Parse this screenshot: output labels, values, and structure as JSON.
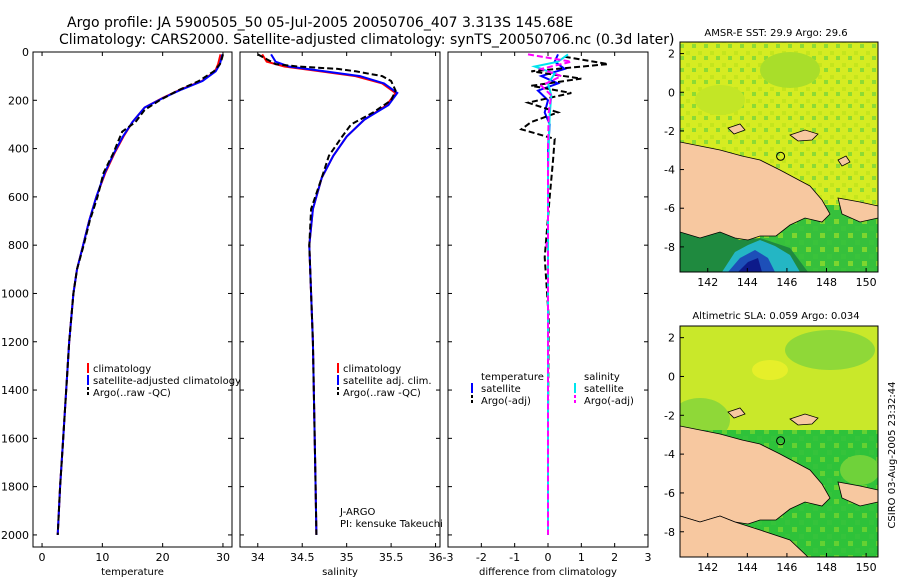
{
  "header": {
    "line1": "Argo profile: JA 5900505_50 05-Jul-2005 20050706_407 3.313S 145.68E",
    "line2": "Climatology: CARS2000. Satellite-adjusted climatology: synTS_20050706.nc (0.3d later)"
  },
  "side_label": "CSIRO 03-Aug-2005 23:32:44",
  "colors": {
    "red": "#ff0000",
    "blue": "#0000ff",
    "black": "#000000",
    "cyan": "#00e5ee",
    "magenta": "#ff00ff",
    "land": "#f7c8a0",
    "sea_yellow": "#e6ef2a",
    "sea_green": "#3fc83f"
  },
  "chart_data": [
    {
      "type": "line",
      "id": "temperature",
      "xlabel": "temperature",
      "ylabel": "",
      "xlim": [
        -1.5,
        31.5
      ],
      "ylim": [
        0,
        2050
      ],
      "xticks": [
        0,
        10,
        20,
        30
      ],
      "yticks": [
        0,
        200,
        400,
        600,
        800,
        1000,
        1200,
        1400,
        1600,
        1800,
        2000
      ],
      "legend": [
        {
          "label": "climatology",
          "color": "red"
        },
        {
          "label": "satellite-adjusted climatology",
          "color": "blue"
        },
        {
          "label": "Argo(..raw -QC)",
          "color": "black",
          "dash": true
        }
      ],
      "series": [
        {
          "name": "climatology",
          "color": "red",
          "points": [
            [
              29.6,
              10
            ],
            [
              29.2,
              50
            ],
            [
              28.7,
              80
            ],
            [
              26.5,
              120
            ],
            [
              23,
              155
            ],
            [
              20,
              190
            ],
            [
              17,
              230
            ],
            [
              15,
              290
            ],
            [
              13.5,
              350
            ],
            [
              12,
              420
            ],
            [
              10.5,
              500
            ],
            [
              9,
              600
            ],
            [
              7.8,
              700
            ],
            [
              6.8,
              800
            ],
            [
              5.8,
              900
            ],
            [
              5.2,
              1000
            ],
            [
              4.5,
              1200
            ],
            [
              4,
              1400
            ],
            [
              3.5,
              1600
            ],
            [
              3,
              1800
            ],
            [
              2.6,
              2000
            ]
          ]
        },
        {
          "name": "satellite-adjusted climatology",
          "color": "blue",
          "points": [
            [
              29.9,
              10
            ],
            [
              29.5,
              50
            ],
            [
              28.8,
              80
            ],
            [
              26.6,
              120
            ],
            [
              23.2,
              155
            ],
            [
              20.1,
              190
            ],
            [
              17,
              230
            ],
            [
              15,
              290
            ],
            [
              13.4,
              350
            ],
            [
              11.9,
              420
            ],
            [
              10.4,
              500
            ],
            [
              9,
              600
            ],
            [
              7.8,
              700
            ],
            [
              6.8,
              800
            ],
            [
              5.8,
              900
            ],
            [
              5.2,
              1000
            ],
            [
              4.5,
              1200
            ],
            [
              4,
              1400
            ],
            [
              3.5,
              1600
            ],
            [
              3,
              1800
            ],
            [
              2.6,
              2000
            ]
          ]
        },
        {
          "name": "Argo(..raw -QC)",
          "color": "black",
          "dashed": true,
          "points": [
            [
              30,
              10
            ],
            [
              29.8,
              30
            ],
            [
              29.5,
              50
            ],
            [
              28.5,
              80
            ],
            [
              26,
              120
            ],
            [
              22.5,
              160
            ],
            [
              19.5,
              200
            ],
            [
              17,
              240
            ],
            [
              15.5,
              290
            ],
            [
              13.3,
              330
            ],
            [
              11.8,
              420
            ],
            [
              10.2,
              500
            ],
            [
              9.2,
              600
            ],
            [
              7.9,
              700
            ],
            [
              6.9,
              800
            ],
            [
              5.8,
              900
            ],
            [
              5.2,
              1000
            ],
            [
              4.5,
              1200
            ],
            [
              4,
              1400
            ],
            [
              3.5,
              1600
            ],
            [
              3,
              1800
            ],
            [
              2.6,
              2000
            ]
          ]
        }
      ]
    },
    {
      "type": "line",
      "id": "salinity",
      "xlabel": "salinity",
      "ylabel": "",
      "xlim": [
        33.8,
        36.05
      ],
      "ylim": [
        0,
        2050
      ],
      "xticks": [
        34,
        34.5,
        35,
        35.5,
        36
      ],
      "yticks": [
        0,
        200,
        400,
        600,
        800,
        1000,
        1200,
        1400,
        1600,
        1800,
        2000
      ],
      "legend": [
        {
          "label": "climatology",
          "color": "red"
        },
        {
          "label": "satellite adj. clim.",
          "color": "blue"
        },
        {
          "label": "Argo(..raw -QC)",
          "color": "black",
          "dash": true
        }
      ],
      "annotations": [
        "J-ARGO",
        "PI: kensuke Takeuchi"
      ],
      "series": [
        {
          "name": "climatology",
          "color": "red",
          "points": [
            [
              34.05,
              10
            ],
            [
              34.1,
              40
            ],
            [
              34.3,
              60
            ],
            [
              34.7,
              80
            ],
            [
              35.1,
              100
            ],
            [
              35.4,
              130
            ],
            [
              35.55,
              170
            ],
            [
              35.45,
              220
            ],
            [
              35.2,
              280
            ],
            [
              35.0,
              350
            ],
            [
              34.85,
              430
            ],
            [
              34.72,
              520
            ],
            [
              34.62,
              650
            ],
            [
              34.58,
              800
            ],
            [
              34.6,
              1000
            ],
            [
              34.62,
              1200
            ],
            [
              34.63,
              1400
            ],
            [
              34.64,
              1600
            ],
            [
              34.65,
              1800
            ],
            [
              34.66,
              2000
            ]
          ]
        },
        {
          "name": "satellite adj. clim.",
          "color": "blue",
          "points": [
            [
              34.15,
              10
            ],
            [
              34.2,
              40
            ],
            [
              34.35,
              60
            ],
            [
              34.75,
              80
            ],
            [
              35.15,
              100
            ],
            [
              35.42,
              130
            ],
            [
              35.57,
              170
            ],
            [
              35.47,
              220
            ],
            [
              35.2,
              280
            ],
            [
              35.0,
              350
            ],
            [
              34.85,
              430
            ],
            [
              34.72,
              520
            ],
            [
              34.62,
              650
            ],
            [
              34.58,
              800
            ],
            [
              34.6,
              1000
            ],
            [
              34.62,
              1200
            ],
            [
              34.63,
              1400
            ],
            [
              34.64,
              1600
            ],
            [
              34.65,
              1800
            ],
            [
              34.66,
              2000
            ]
          ]
        },
        {
          "name": "Argo(..raw -QC)",
          "color": "black",
          "dashed": true,
          "points": [
            [
              34.0,
              10
            ],
            [
              34.1,
              30
            ],
            [
              34.2,
              50
            ],
            [
              34.45,
              60
            ],
            [
              34.9,
              70
            ],
            [
              35.1,
              80
            ],
            [
              35.4,
              100
            ],
            [
              35.5,
              120
            ],
            [
              35.55,
              160
            ],
            [
              35.5,
              200
            ],
            [
              35.3,
              250
            ],
            [
              35.05,
              300
            ],
            [
              34.95,
              350
            ],
            [
              34.8,
              430
            ],
            [
              34.72,
              520
            ],
            [
              34.6,
              650
            ],
            [
              34.58,
              800
            ],
            [
              34.6,
              1000
            ],
            [
              34.62,
              1200
            ],
            [
              34.63,
              1400
            ],
            [
              34.64,
              1600
            ],
            [
              34.65,
              1800
            ],
            [
              34.66,
              2000
            ]
          ]
        }
      ]
    },
    {
      "type": "line",
      "id": "difference",
      "xlabel": "difference from climatology",
      "ylabel": "",
      "xlim": [
        -3,
        3
      ],
      "ylim": [
        0,
        2050
      ],
      "xticks": [
        -3,
        -2,
        -1,
        0,
        1,
        2,
        3
      ],
      "yticks": [
        0,
        200,
        400,
        600,
        800,
        1000,
        1200,
        1400,
        1600,
        1800,
        2000
      ],
      "legend_left_title": "temperature",
      "legend_right_title": "salinity",
      "legend": [
        {
          "label": "satellite",
          "color": "blue",
          "group": "left"
        },
        {
          "label": "Argo(-adj)",
          "color": "black",
          "dash": true,
          "group": "left"
        },
        {
          "label": "satellite",
          "color": "cyan",
          "group": "right"
        },
        {
          "label": "Argo(-adj)",
          "color": "magenta",
          "dash": true,
          "group": "right"
        }
      ],
      "series": [
        {
          "name": "temperature satellite",
          "color": "blue",
          "points": [
            [
              0.3,
              10
            ],
            [
              0.2,
              40
            ],
            [
              0.5,
              70
            ],
            [
              -0.2,
              100
            ],
            [
              0.3,
              130
            ],
            [
              -0.3,
              160
            ],
            [
              0.0,
              200
            ],
            [
              -0.1,
              250
            ],
            [
              0.05,
              300
            ],
            [
              0,
              400
            ],
            [
              0,
              600
            ],
            [
              0,
              1000
            ],
            [
              0,
              1500
            ],
            [
              0,
              2000
            ]
          ]
        },
        {
          "name": "temperature Argo(-adj)",
          "color": "black",
          "dashed": true,
          "points": [
            [
              0.5,
              20
            ],
            [
              1.8,
              50
            ],
            [
              -0.5,
              80
            ],
            [
              1.0,
              110
            ],
            [
              -0.5,
              140
            ],
            [
              0.7,
              170
            ],
            [
              -0.6,
              210
            ],
            [
              0.3,
              250
            ],
            [
              -0.5,
              290
            ],
            [
              -0.8,
              320
            ],
            [
              0.2,
              360
            ],
            [
              0.15,
              450
            ],
            [
              0.05,
              600
            ],
            [
              -0.1,
              850
            ],
            [
              -0.05,
              950
            ],
            [
              0.02,
              1100
            ],
            [
              0,
              1500
            ],
            [
              0,
              2000
            ]
          ]
        },
        {
          "name": "salinity satellite",
          "color": "cyan",
          "points": [
            [
              0.6,
              10
            ],
            [
              0.3,
              40
            ],
            [
              -0.4,
              60
            ],
            [
              0.2,
              90
            ],
            [
              0.0,
              130
            ],
            [
              0.1,
              180
            ],
            [
              0.05,
              260
            ],
            [
              0.03,
              350
            ],
            [
              0,
              500
            ],
            [
              0,
              1000
            ],
            [
              0,
              2000
            ]
          ]
        },
        {
          "name": "salinity Argo(-adj)",
          "color": "magenta",
          "dashed": true,
          "points": [
            [
              -0.6,
              10
            ],
            [
              0.7,
              40
            ],
            [
              -0.2,
              70
            ],
            [
              0.4,
              100
            ],
            [
              -0.2,
              140
            ],
            [
              0.1,
              180
            ],
            [
              0.02,
              250
            ],
            [
              0,
              400
            ],
            [
              0,
              780
            ],
            [
              -0.05,
              800
            ],
            [
              0,
              820
            ],
            [
              0,
              1000
            ],
            [
              0,
              2000
            ]
          ]
        }
      ]
    },
    {
      "type": "heatmap",
      "id": "sst-map",
      "title": "AMSR-E SST: 29.9 Argo: 29.6",
      "xlim": [
        140.6,
        150.6
      ],
      "ylim": [
        -9.3,
        2.6
      ],
      "xticks": [
        142,
        144,
        146,
        148,
        150
      ],
      "yticks": [
        2,
        0,
        -2,
        -4,
        -6,
        -8
      ],
      "marker": [
        145.68,
        -3.313
      ]
    },
    {
      "type": "heatmap",
      "id": "sla-map",
      "title": "Altimetric SLA: 0.059 Argo: 0.034",
      "xlim": [
        140.6,
        150.6
      ],
      "ylim": [
        -9.3,
        2.6
      ],
      "xticks": [
        142,
        144,
        146,
        148,
        150
      ],
      "yticks": [
        2,
        0,
        -2,
        -4,
        -6,
        -8
      ],
      "marker": [
        145.68,
        -3.313
      ]
    }
  ]
}
